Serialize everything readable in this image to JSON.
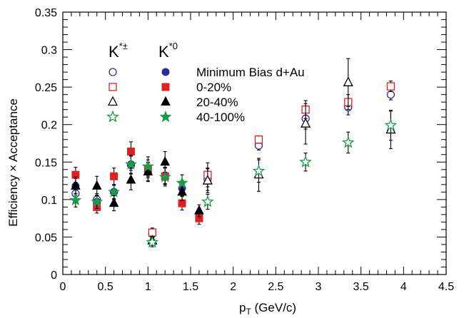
{
  "chart_data": {
    "type": "scatter",
    "xlabel": "p_T (GeV/c)",
    "ylabel": "Efficiency × Acceptance",
    "xlim": [
      0,
      4.5
    ],
    "ylim": [
      0,
      0.35
    ],
    "x_ticks": [
      "0",
      "0.5",
      "1",
      "1.5",
      "2",
      "2.5",
      "3",
      "3.5",
      "4",
      "4.5"
    ],
    "y_ticks": [
      "0",
      "0.05",
      "0.1",
      "0.15",
      "0.2",
      "0.25",
      "0.3",
      "0.35"
    ],
    "legend": {
      "placement": "top-left",
      "column_headers": [
        {
          "base": "K",
          "sup": "*±"
        },
        {
          "base": "K",
          "sup": "*0"
        }
      ],
      "rows": [
        "Minimum Bias d+Au",
        "0-20%",
        "20-40%",
        "40-100%"
      ]
    },
    "series": [
      {
        "name": "K*± Minimum Bias d+Au",
        "marker": "circle-open",
        "color": "#2b2b9a",
        "points": [
          {
            "x": 0.15,
            "y": 0.108,
            "err": 0.009
          },
          {
            "x": 0.4,
            "y": 0.1,
            "err": 0.008
          },
          {
            "x": 0.6,
            "y": 0.11,
            "err": 0.009
          },
          {
            "x": 0.8,
            "y": 0.146,
            "err": 0.012
          },
          {
            "x": 1.05,
            "y": 0.054,
            "err": 0.006
          },
          {
            "x": 1.2,
            "y": 0.132,
            "err": 0.011
          },
          {
            "x": 1.7,
            "y": 0.127,
            "err": 0.015
          },
          {
            "x": 2.3,
            "y": 0.172,
            "err": 0.006
          },
          {
            "x": 2.85,
            "y": 0.208,
            "err": 0.014
          },
          {
            "x": 3.35,
            "y": 0.223,
            "err": 0.01
          },
          {
            "x": 3.85,
            "y": 0.24,
            "err": 0.007
          }
        ]
      },
      {
        "name": "K*0 Minimum Bias d+Au",
        "marker": "circle-filled",
        "color": "#2b2b9a",
        "points": [
          {
            "x": 0.15,
            "y": 0.118,
            "err": 0.01
          },
          {
            "x": 0.4,
            "y": 0.097,
            "err": 0.008
          },
          {
            "x": 0.6,
            "y": 0.11,
            "err": 0.009
          },
          {
            "x": 0.8,
            "y": 0.147,
            "err": 0.012
          },
          {
            "x": 1.0,
            "y": 0.137,
            "err": 0.012
          },
          {
            "x": 1.2,
            "y": 0.132,
            "err": 0.011
          },
          {
            "x": 1.4,
            "y": 0.115,
            "err": 0.01
          }
        ]
      },
      {
        "name": "K*± 0-20%",
        "marker": "square-open",
        "color": "#e02020",
        "points": [
          {
            "x": 1.05,
            "y": 0.056,
            "err": 0.006
          },
          {
            "x": 1.7,
            "y": 0.133,
            "err": 0.016
          },
          {
            "x": 2.3,
            "y": 0.18,
            "err": 0.005
          },
          {
            "x": 2.85,
            "y": 0.22,
            "err": 0.012
          },
          {
            "x": 3.35,
            "y": 0.23,
            "err": 0.01
          },
          {
            "x": 3.85,
            "y": 0.251,
            "err": 0.007
          }
        ]
      },
      {
        "name": "K*0 0-20%",
        "marker": "square-filled",
        "color": "#e02020",
        "points": [
          {
            "x": 0.15,
            "y": 0.133,
            "err": 0.01
          },
          {
            "x": 0.4,
            "y": 0.09,
            "err": 0.008
          },
          {
            "x": 0.6,
            "y": 0.131,
            "err": 0.011
          },
          {
            "x": 0.8,
            "y": 0.164,
            "err": 0.013
          },
          {
            "x": 1.0,
            "y": 0.141,
            "err": 0.012
          },
          {
            "x": 1.2,
            "y": 0.131,
            "err": 0.011
          },
          {
            "x": 1.4,
            "y": 0.095,
            "err": 0.009
          },
          {
            "x": 1.6,
            "y": 0.075,
            "err": 0.008
          }
        ]
      },
      {
        "name": "K*± 20-40%",
        "marker": "triangle-open",
        "color": "#000000",
        "points": [
          {
            "x": 1.05,
            "y": 0.045,
            "err": 0.006
          },
          {
            "x": 1.7,
            "y": 0.125,
            "err": 0.016
          },
          {
            "x": 2.3,
            "y": 0.133,
            "err": 0.022
          },
          {
            "x": 2.85,
            "y": 0.201,
            "err": 0.027
          },
          {
            "x": 3.35,
            "y": 0.256,
            "err": 0.032
          },
          {
            "x": 3.85,
            "y": 0.193,
            "err": 0.025
          }
        ]
      },
      {
        "name": "K*0 20-40%",
        "marker": "triangle-filled",
        "color": "#000000",
        "points": [
          {
            "x": 0.15,
            "y": 0.118,
            "err": 0.012
          },
          {
            "x": 0.4,
            "y": 0.118,
            "err": 0.013
          },
          {
            "x": 0.6,
            "y": 0.095,
            "err": 0.01
          },
          {
            "x": 0.8,
            "y": 0.126,
            "err": 0.013
          },
          {
            "x": 1.0,
            "y": 0.137,
            "err": 0.013
          },
          {
            "x": 1.2,
            "y": 0.15,
            "err": 0.014
          },
          {
            "x": 1.4,
            "y": 0.11,
            "err": 0.011
          },
          {
            "x": 1.6,
            "y": 0.085,
            "err": 0.008
          }
        ]
      },
      {
        "name": "K*± 40-100%",
        "marker": "star-open",
        "color": "#1a9a4a",
        "points": [
          {
            "x": 1.05,
            "y": 0.043,
            "err": 0.006
          },
          {
            "x": 1.7,
            "y": 0.097,
            "err": 0.01
          },
          {
            "x": 2.3,
            "y": 0.138,
            "err": 0.015
          },
          {
            "x": 2.85,
            "y": 0.15,
            "err": 0.012
          },
          {
            "x": 3.35,
            "y": 0.176,
            "err": 0.014
          },
          {
            "x": 3.85,
            "y": 0.199,
            "err": 0.02
          }
        ]
      },
      {
        "name": "K*0 40-100%",
        "marker": "star-filled",
        "color": "#1a9a4a",
        "points": [
          {
            "x": 0.15,
            "y": 0.099,
            "err": 0.009
          },
          {
            "x": 0.4,
            "y": 0.097,
            "err": 0.009
          },
          {
            "x": 0.6,
            "y": 0.11,
            "err": 0.01
          },
          {
            "x": 0.8,
            "y": 0.147,
            "err": 0.012
          },
          {
            "x": 1.0,
            "y": 0.144,
            "err": 0.013
          },
          {
            "x": 1.2,
            "y": 0.13,
            "err": 0.012
          },
          {
            "x": 1.4,
            "y": 0.122,
            "err": 0.011
          }
        ]
      }
    ]
  }
}
